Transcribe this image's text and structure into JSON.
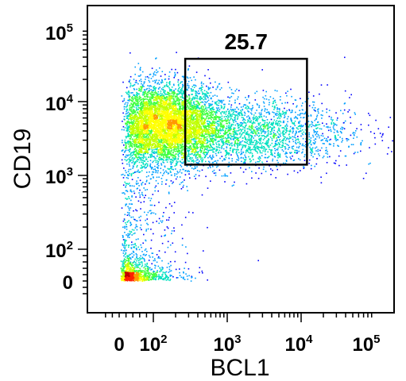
{
  "chart_data": {
    "type": "scatter",
    "subtype": "flow-cytometry-density-dot-plot",
    "xlabel": "BCL1",
    "ylabel": "CD19",
    "x_scale": "biexponential",
    "y_scale": "biexponential",
    "x_ticks": [
      {
        "base": "0",
        "exp": "",
        "value": 0
      },
      {
        "base": "10",
        "exp": "2",
        "value": 100
      },
      {
        "base": "10",
        "exp": "3",
        "value": 1000
      },
      {
        "base": "10",
        "exp": "4",
        "value": 10000
      },
      {
        "base": "10",
        "exp": "5",
        "value": 100000
      }
    ],
    "y_ticks": [
      {
        "base": "0",
        "exp": "",
        "value": 0
      },
      {
        "base": "10",
        "exp": "2",
        "value": 100
      },
      {
        "base": "10",
        "exp": "3",
        "value": 1000
      },
      {
        "base": "10",
        "exp": "4",
        "value": 10000
      },
      {
        "base": "10",
        "exp": "5",
        "value": 100000
      }
    ],
    "gate": {
      "label": "25.7",
      "x_range": [
        270,
        12000
      ],
      "y_range": [
        1400,
        38000
      ]
    },
    "populations": [
      {
        "x": 150,
        "y": 5000,
        "sx": 0.22,
        "sy": 0.17,
        "n": 5200
      },
      {
        "x": 1600,
        "y": 3800,
        "sx": 0.45,
        "sy": 0.15,
        "n": 2400
      },
      {
        "x": 40,
        "y": 20,
        "sx": 0.22,
        "sy": 0.22,
        "n": 900
      },
      {
        "x": 50,
        "y": 300,
        "sx": 0.25,
        "sy": 0.45,
        "n": 500
      }
    ],
    "density_colors": [
      "#0000ff",
      "#00a0ff",
      "#00e0c0",
      "#40ff40",
      "#c0ff00",
      "#ffff00",
      "#ff9900",
      "#ff2000",
      "#c00000"
    ]
  }
}
